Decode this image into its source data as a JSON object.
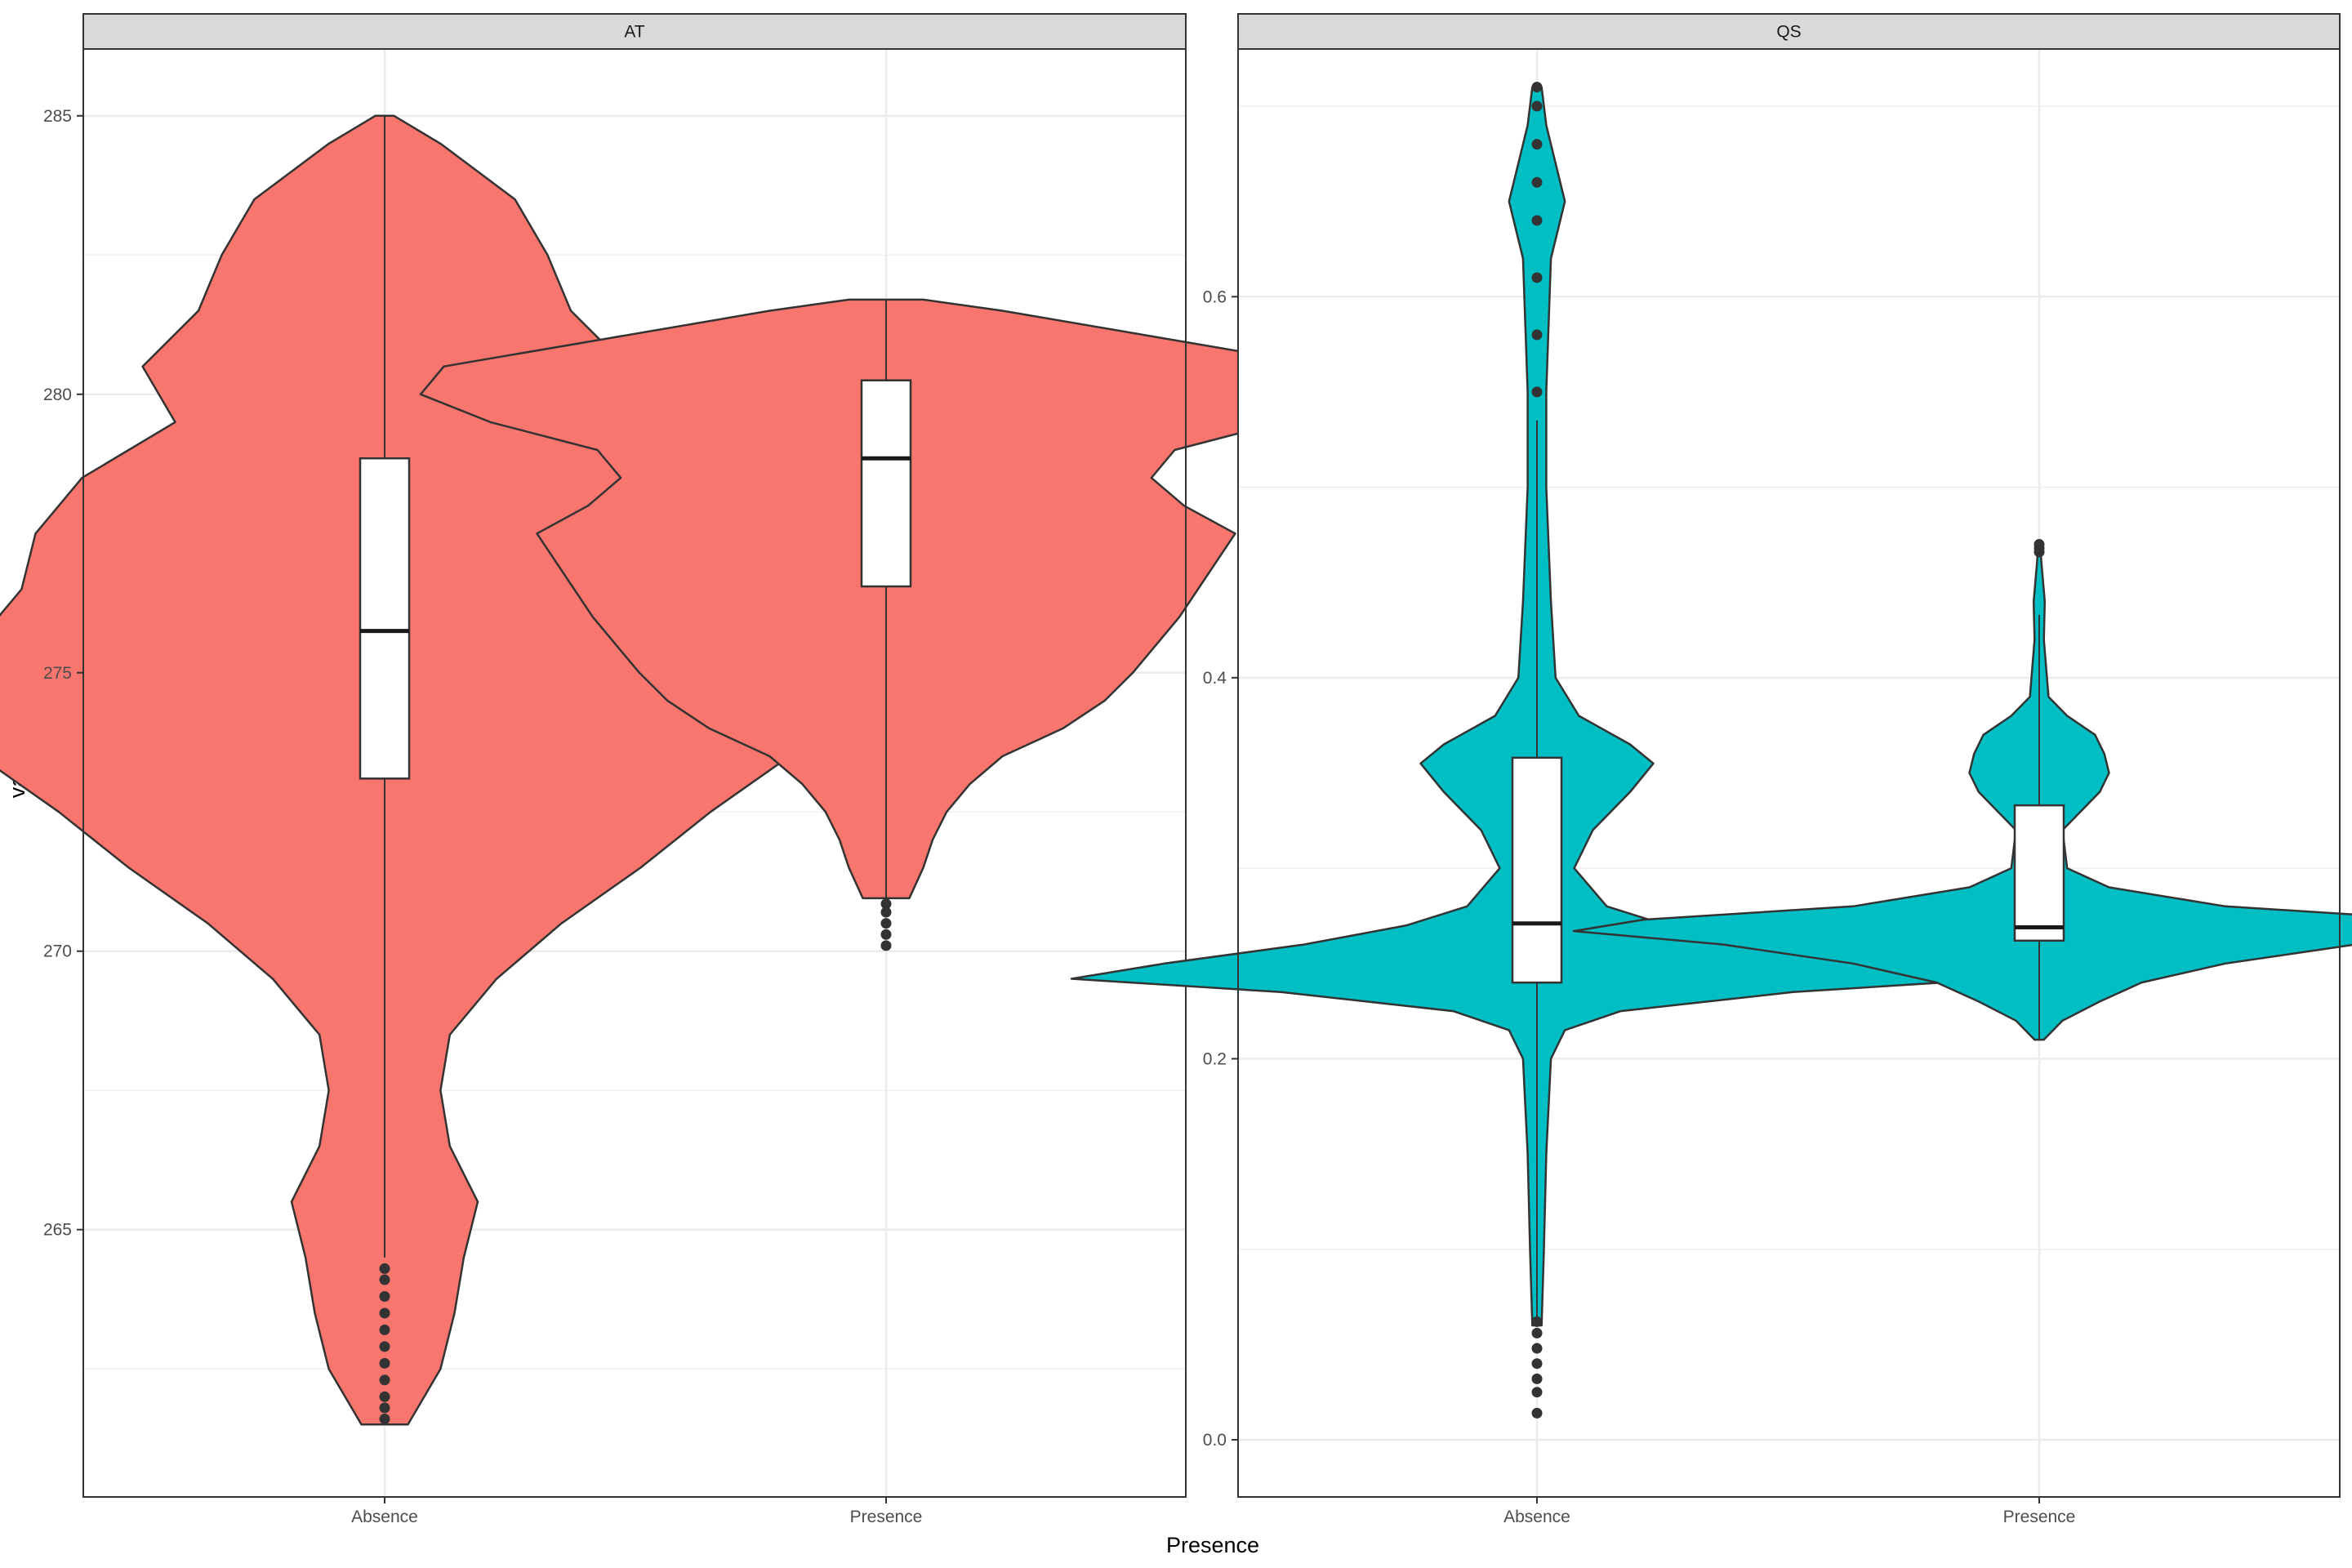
{
  "chart_data": {
    "type": "violin",
    "xlabel": "Presence",
    "ylabel": "value",
    "categories": [
      "Absence",
      "Presence"
    ],
    "grid": true,
    "legend": "none",
    "colors": {
      "AT": "#F8766D",
      "QS": "#00BFC4"
    },
    "panels": [
      {
        "title": "AT",
        "ylim": [
          260.2,
          286.2
        ],
        "yticks": [
          265,
          270,
          275,
          280,
          285
        ],
        "violins": [
          {
            "category": "Absence",
            "range": [
              261.5,
              285.0
            ],
            "density": [
              [
                261.5,
                0.05
              ],
              [
                262.5,
                0.12
              ],
              [
                263.5,
                0.15
              ],
              [
                264.5,
                0.17
              ],
              [
                265.5,
                0.2
              ],
              [
                266.5,
                0.14
              ],
              [
                267.5,
                0.12
              ],
              [
                268.5,
                0.14
              ],
              [
                269.5,
                0.24
              ],
              [
                270.5,
                0.38
              ],
              [
                271.5,
                0.55
              ],
              [
                272.5,
                0.7
              ],
              [
                273.5,
                0.87
              ],
              [
                274.5,
                0.95
              ],
              [
                275.5,
                0.88
              ],
              [
                276.5,
                0.78
              ],
              [
                277.5,
                0.75
              ],
              [
                278.5,
                0.65
              ],
              [
                279.5,
                0.45
              ],
              [
                280.5,
                0.52
              ],
              [
                281.5,
                0.4
              ],
              [
                282.5,
                0.35
              ],
              [
                283.5,
                0.28
              ],
              [
                284.5,
                0.12
              ],
              [
                285.0,
                0.02
              ]
            ],
            "box": {
              "q1": 273.1,
              "median": 275.75,
              "q3": 278.85,
              "whisker_low": 264.5,
              "whisker_high": 285.0
            },
            "outliers": [
              261.6,
              261.8,
              262.0,
              262.3,
              262.6,
              262.9,
              263.2,
              263.5,
              263.8,
              264.1,
              264.3
            ]
          },
          {
            "category": "Presence",
            "range": [
              270.95,
              281.7
            ],
            "density": [
              [
                270.95,
                0.05
              ],
              [
                271.5,
                0.08
              ],
              [
                272.0,
                0.1
              ],
              [
                272.5,
                0.13
              ],
              [
                273.0,
                0.18
              ],
              [
                273.5,
                0.25
              ],
              [
                274.0,
                0.38
              ],
              [
                274.5,
                0.47
              ],
              [
                275.0,
                0.53
              ],
              [
                275.5,
                0.58
              ],
              [
                276.0,
                0.63
              ],
              [
                276.5,
                0.67
              ],
              [
                277.0,
                0.71
              ],
              [
                277.5,
                0.75
              ],
              [
                278.0,
                0.64
              ],
              [
                278.5,
                0.57
              ],
              [
                279.0,
                0.62
              ],
              [
                279.5,
                0.85
              ],
              [
                280.0,
                1.0
              ],
              [
                280.5,
                0.95
              ],
              [
                281.0,
                0.6
              ],
              [
                281.5,
                0.25
              ],
              [
                281.7,
                0.08
              ]
            ],
            "box": {
              "q1": 276.55,
              "median": 278.85,
              "q3": 280.25,
              "whisker_low": 270.95,
              "whisker_high": 281.7
            },
            "outliers": [
              270.1,
              270.3,
              270.5,
              270.7,
              270.85
            ]
          }
        ]
      },
      {
        "title": "QS",
        "ylim": [
          -0.03,
          0.73
        ],
        "yticks": [
          0.0,
          0.2,
          0.4,
          0.6
        ],
        "ytick_labels": [
          "0.0",
          "0.2",
          "0.4",
          "0.6"
        ],
        "violins": [
          {
            "category": "Absence",
            "range": [
              0.06,
              0.71
            ],
            "density": [
              [
                0.06,
                0.01
              ],
              [
                0.1,
                0.015
              ],
              [
                0.15,
                0.02
              ],
              [
                0.2,
                0.03
              ],
              [
                0.215,
                0.06
              ],
              [
                0.225,
                0.18
              ],
              [
                0.235,
                0.55
              ],
              [
                0.242,
                1.0
              ],
              [
                0.25,
                0.8
              ],
              [
                0.26,
                0.5
              ],
              [
                0.27,
                0.28
              ],
              [
                0.28,
                0.15
              ],
              [
                0.3,
                0.08
              ],
              [
                0.32,
                0.12
              ],
              [
                0.34,
                0.2
              ],
              [
                0.355,
                0.25
              ],
              [
                0.365,
                0.2
              ],
              [
                0.38,
                0.09
              ],
              [
                0.4,
                0.04
              ],
              [
                0.44,
                0.03
              ],
              [
                0.5,
                0.02
              ],
              [
                0.55,
                0.02
              ],
              [
                0.62,
                0.03
              ],
              [
                0.65,
                0.06
              ],
              [
                0.67,
                0.04
              ],
              [
                0.69,
                0.02
              ],
              [
                0.71,
                0.01
              ]
            ],
            "box": {
              "q1": 0.24,
              "median": 0.271,
              "q3": 0.358,
              "whisker_low": 0.062,
              "whisker_high": 0.535
            },
            "outliers": [
              0.014,
              0.025,
              0.032,
              0.04,
              0.048,
              0.056,
              0.062,
              0.55,
              0.58,
              0.61,
              0.64,
              0.66,
              0.68,
              0.7,
              0.71
            ]
          },
          {
            "category": "Presence",
            "range": [
              0.21,
              0.47
            ],
            "density": [
              [
                0.21,
                0.01
              ],
              [
                0.22,
                0.05
              ],
              [
                0.23,
                0.13
              ],
              [
                0.24,
                0.22
              ],
              [
                0.25,
                0.4
              ],
              [
                0.26,
                0.68
              ],
              [
                0.267,
                1.0
              ],
              [
                0.273,
                0.85
              ],
              [
                0.28,
                0.4
              ],
              [
                0.29,
                0.15
              ],
              [
                0.3,
                0.06
              ],
              [
                0.32,
                0.05
              ],
              [
                0.34,
                0.13
              ],
              [
                0.35,
                0.15
              ],
              [
                0.36,
                0.14
              ],
              [
                0.37,
                0.12
              ],
              [
                0.38,
                0.06
              ],
              [
                0.39,
                0.02
              ],
              [
                0.42,
                0.01
              ],
              [
                0.44,
                0.012
              ],
              [
                0.46,
                0.005
              ],
              [
                0.47,
                0.002
              ]
            ],
            "box": {
              "q1": 0.262,
              "median": 0.269,
              "q3": 0.333,
              "whisker_low": 0.21,
              "whisker_high": 0.433
            },
            "outliers": [
              0.466,
              0.468,
              0.47
            ]
          }
        ]
      }
    ]
  }
}
